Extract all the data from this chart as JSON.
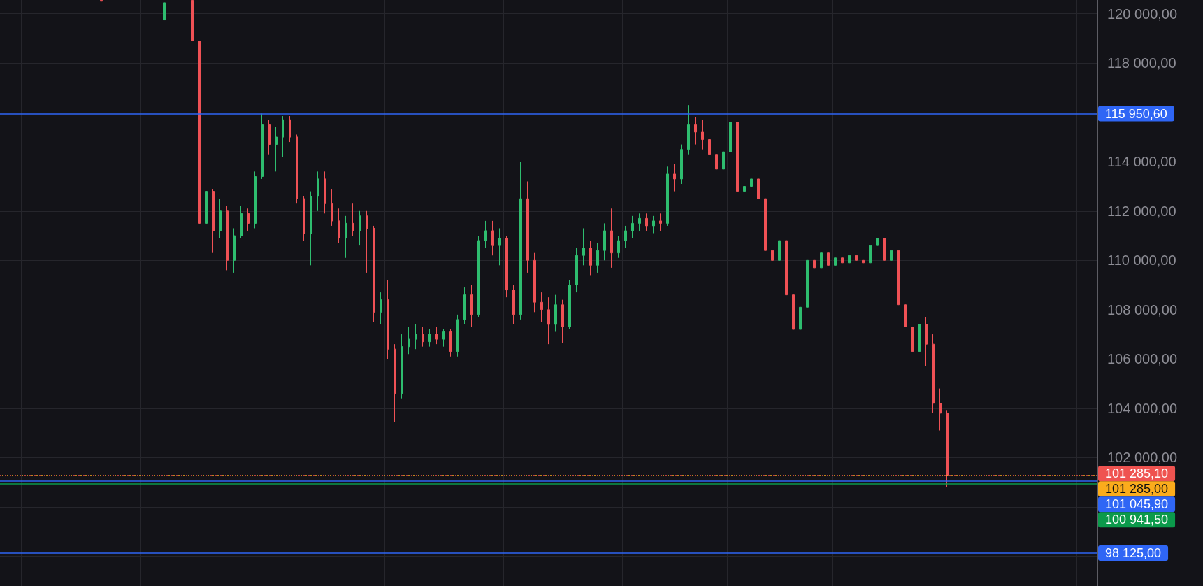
{
  "chart_data": {
    "type": "candlestick",
    "categories": [
      null,
      null,
      null,
      null,
      null,
      null,
      null,
      null,
      null,
      null,
      null,
      null,
      null,
      null,
      null,
      null,
      null,
      null,
      null,
      null,
      null,
      null,
      null,
      null,
      null,
      null,
      null,
      null,
      null,
      null,
      null,
      null,
      null,
      null,
      null,
      null,
      null,
      null,
      null,
      null,
      null,
      null,
      null,
      null,
      null,
      null,
      null,
      null,
      null,
      null,
      null,
      null,
      null,
      null,
      null,
      null,
      null,
      null,
      null,
      null,
      null,
      null,
      null,
      null,
      null,
      null,
      null,
      null,
      null,
      null,
      null,
      null,
      null,
      null,
      null,
      null,
      null,
      null,
      null,
      null,
      null,
      null,
      null,
      null,
      null,
      null,
      null,
      null,
      null,
      null,
      null,
      null,
      null,
      null,
      null,
      null,
      null,
      null,
      null,
      null,
      null,
      null,
      null,
      null,
      null,
      null,
      null,
      null,
      null,
      null,
      null,
      null,
      null,
      null,
      null,
      null,
      null,
      null,
      null,
      null,
      null,
      null,
      null,
      null,
      null,
      null,
      null,
      null,
      null,
      null,
      null,
      null,
      null,
      null,
      null,
      null,
      null,
      null,
      null,
      null,
      null,
      null,
      null,
      null,
      null,
      null,
      null,
      null,
      null,
      null,
      null,
      null,
      null,
      null,
      null,
      null,
      null
    ],
    "ohlc": [
      null,
      null,
      null,
      null,
      null,
      null,
      null,
      null,
      null,
      null,
      null,
      null,
      null,
      null,
      [
        120550,
        120550,
        120490,
        120510
      ],
      null,
      null,
      null,
      null,
      null,
      null,
      null,
      null,
      [
        119750,
        120550,
        119570,
        120450
      ],
      null,
      null,
      null,
      [
        120550,
        120550,
        118850,
        118900
      ],
      [
        118900,
        119000,
        101100,
        111500
      ],
      [
        111500,
        113300,
        110400,
        112800
      ],
      [
        112800,
        112900,
        110300,
        111200
      ],
      [
        111200,
        112500,
        110900,
        112000
      ],
      [
        112000,
        112200,
        109600,
        110000
      ],
      [
        110000,
        111300,
        109500,
        111000
      ],
      [
        111000,
        112200,
        110900,
        111900
      ],
      [
        111900,
        112100,
        111200,
        111500
      ],
      [
        111500,
        113600,
        111300,
        113400
      ],
      [
        113400,
        115950,
        113300,
        115500
      ],
      [
        115500,
        115700,
        114300,
        114700
      ],
      [
        114700,
        115400,
        113600,
        115000
      ],
      [
        115000,
        115850,
        114200,
        115700
      ],
      [
        115700,
        115850,
        114800,
        115000
      ],
      [
        115000,
        115100,
        112300,
        112500
      ],
      [
        112500,
        112600,
        110800,
        111100
      ],
      [
        111100,
        112800,
        109800,
        112600
      ],
      [
        112600,
        113600,
        112000,
        113300
      ],
      [
        113300,
        113600,
        111900,
        112300
      ],
      [
        112300,
        112900,
        111400,
        111600
      ],
      [
        111600,
        112100,
        110700,
        110900
      ],
      [
        110900,
        111800,
        110100,
        111500
      ],
      [
        111500,
        112300,
        111000,
        111200
      ],
      [
        111200,
        112000,
        110600,
        111800
      ],
      [
        111800,
        112000,
        109500,
        111300
      ],
      [
        111300,
        111400,
        107500,
        107900
      ],
      [
        107900,
        108700,
        107400,
        108400
      ],
      [
        108400,
        109200,
        106000,
        106400
      ],
      [
        106400,
        106600,
        103450,
        104600
      ],
      [
        104600,
        107000,
        104400,
        106500
      ],
      [
        106500,
        107300,
        106200,
        106800
      ],
      [
        106800,
        107400,
        106400,
        107000
      ],
      [
        107000,
        107300,
        106500,
        106700
      ],
      [
        106700,
        107200,
        106500,
        107000
      ],
      [
        107000,
        107300,
        106600,
        106800
      ],
      [
        106800,
        107200,
        106500,
        107100
      ],
      [
        107100,
        107200,
        106100,
        106300
      ],
      [
        106300,
        107800,
        106100,
        107600
      ],
      [
        107600,
        108900,
        107400,
        108600
      ],
      [
        108600,
        109000,
        107300,
        107800
      ],
      [
        107800,
        111000,
        107700,
        110800
      ],
      [
        110800,
        111600,
        110500,
        111200
      ],
      [
        111200,
        111600,
        110200,
        110600
      ],
      [
        110600,
        111300,
        109800,
        110900
      ],
      [
        110900,
        111000,
        108500,
        108800
      ],
      [
        108800,
        109000,
        107400,
        107800
      ],
      [
        107800,
        114000,
        107600,
        112500
      ],
      [
        112500,
        113200,
        109500,
        110000
      ],
      [
        110000,
        110300,
        107900,
        108300
      ],
      [
        108300,
        108700,
        107500,
        108000
      ],
      [
        108000,
        108500,
        106600,
        107400
      ],
      [
        107400,
        108600,
        107100,
        108200
      ],
      [
        108200,
        108400,
        106650,
        107300
      ],
      [
        107300,
        109200,
        107200,
        109000
      ],
      [
        109000,
        110500,
        108700,
        110200
      ],
      [
        110200,
        111300,
        109800,
        110500
      ],
      [
        110500,
        110800,
        109400,
        109800
      ],
      [
        109800,
        110700,
        109500,
        110400
      ],
      [
        110400,
        111500,
        110000,
        111200
      ],
      [
        111200,
        112100,
        109700,
        110300
      ],
      [
        110300,
        111000,
        110100,
        110800
      ],
      [
        110800,
        111400,
        110500,
        111200
      ],
      [
        111200,
        111800,
        110900,
        111500
      ],
      [
        111500,
        111900,
        111200,
        111700
      ],
      [
        111700,
        111900,
        111200,
        111400
      ],
      [
        111400,
        111800,
        111100,
        111600
      ],
      [
        111600,
        111900,
        111200,
        111500
      ],
      [
        111500,
        113800,
        111400,
        113500
      ],
      [
        113500,
        113900,
        112800,
        113300
      ],
      [
        113300,
        114700,
        113100,
        114500
      ],
      [
        114500,
        116300,
        114300,
        115500
      ],
      [
        115500,
        115800,
        114700,
        115200
      ],
      [
        115200,
        115700,
        114500,
        114900
      ],
      [
        114900,
        115000,
        114000,
        114300
      ],
      [
        114300,
        114500,
        113400,
        113700
      ],
      [
        113700,
        114600,
        113500,
        114400
      ],
      [
        114400,
        116050,
        114100,
        115600
      ],
      [
        115600,
        115700,
        112500,
        112800
      ],
      [
        112800,
        113400,
        112100,
        113000
      ],
      [
        113000,
        113600,
        112400,
        113300
      ],
      [
        113300,
        113500,
        112100,
        112500
      ],
      [
        112500,
        112700,
        109000,
        110400
      ],
      [
        110400,
        111700,
        109600,
        110000
      ],
      [
        110000,
        111300,
        107800,
        110800
      ],
      [
        110800,
        111000,
        108300,
        108600
      ],
      [
        108600,
        108900,
        106800,
        107200
      ],
      [
        107200,
        108400,
        106250,
        108100
      ],
      [
        108100,
        110300,
        107900,
        110000
      ],
      [
        110000,
        110700,
        109200,
        109700
      ],
      [
        109700,
        111150,
        108900,
        110300
      ],
      [
        110300,
        110600,
        108550,
        109800
      ],
      [
        109800,
        110300,
        109400,
        110100
      ],
      [
        110100,
        110500,
        109600,
        109900
      ],
      [
        109900,
        110400,
        109700,
        110200
      ],
      [
        110200,
        110400,
        109800,
        110000
      ],
      [
        110000,
        110300,
        109700,
        109900
      ],
      [
        109900,
        110800,
        109800,
        110600
      ],
      [
        110600,
        111200,
        110300,
        110900
      ],
      [
        110900,
        111000,
        109700,
        110000
      ],
      [
        110000,
        110700,
        109700,
        110400
      ],
      [
        110400,
        110500,
        107900,
        108200
      ],
      [
        108200,
        108300,
        107000,
        107300
      ],
      [
        107300,
        108300,
        105250,
        106300
      ],
      [
        106300,
        107800,
        106000,
        107400
      ],
      [
        107400,
        107700,
        105700,
        106600
      ],
      [
        106600,
        107000,
        103800,
        104200
      ],
      [
        104200,
        104800,
        103100,
        103800
      ],
      [
        103800,
        103900,
        100800,
        101285
      ],
      null,
      null,
      null,
      null,
      null,
      null,
      null,
      null,
      null,
      null,
      null,
      null,
      null,
      null,
      null,
      null,
      null,
      null,
      null,
      null,
      null
    ],
    "colors": [
      null,
      null,
      null,
      null,
      null,
      null,
      null,
      null,
      null,
      null,
      null,
      null,
      null,
      null,
      "#ef5155",
      null,
      null,
      null,
      null,
      null,
      null,
      null,
      null,
      "#2ebd6f",
      null,
      null,
      null,
      "#ef5155",
      "#ef5155",
      "#2ebd6f",
      "#ef5155",
      "#2ebd6f",
      "#ef5155",
      "#2ebd6f",
      "#2ebd6f",
      "#ef5155",
      "#2ebd6f",
      "#2ebd6f",
      "#ef5155",
      "#2ebd6f",
      "#2ebd6f",
      "#ef5155",
      "#ef5155",
      "#ef5155",
      "#2ebd6f",
      "#2ebd6f",
      "#ef5155",
      "#ef5155",
      "#ef5155",
      "#2ebd6f",
      "#ef5155",
      "#2ebd6f",
      "#ef5155",
      "#ef5155",
      "#2ebd6f",
      "#ef5155",
      "#ef5155",
      "#2ebd6f",
      "#2ebd6f",
      "#2ebd6f",
      "#ef5155",
      "#2ebd6f",
      "#ef5155",
      "#2ebd6f",
      "#ef5155",
      "#2ebd6f",
      "#2ebd6f",
      "#ef5155",
      "#2ebd6f",
      "#2ebd6f",
      "#ef5155",
      "#2ebd6f",
      "#ef5155",
      "#ef5155",
      "#2ebd6f",
      "#ef5155",
      "#ef5155",
      "#ef5155",
      "#ef5155",
      "#2ebd6f",
      "#ef5155",
      "#2ebd6f",
      "#2ebd6f",
      "#2ebd6f",
      "#ef5155",
      "#2ebd6f",
      "#2ebd6f",
      "#ef5155",
      "#2ebd6f",
      "#2ebd6f",
      "#2ebd6f",
      "#2ebd6f",
      "#ef5155",
      "#2ebd6f",
      "#ef5155",
      "#2ebd6f",
      "#ef5155",
      "#2ebd6f",
      "#2ebd6f",
      "#ef5155",
      "#ef5155",
      "#ef5155",
      "#ef5155",
      "#2ebd6f",
      "#2ebd6f",
      "#ef5155",
      "#2ebd6f",
      "#2ebd6f",
      "#ef5155",
      "#ef5155",
      "#ef5155",
      "#2ebd6f",
      "#ef5155",
      "#ef5155",
      "#2ebd6f",
      "#2ebd6f",
      "#ef5155",
      "#2ebd6f",
      "#ef5155",
      "#2ebd6f",
      "#ef5155",
      "#2ebd6f",
      "#ef5155",
      "#ef5155",
      "#2ebd6f",
      "#2ebd6f",
      "#ef5155",
      "#2ebd6f",
      "#ef5155",
      "#ef5155",
      "#ef5155",
      "#2ebd6f",
      "#ef5155",
      "#ef5155",
      "#ef5155",
      "#ef5155",
      null,
      null,
      null,
      null,
      null,
      null,
      null,
      null,
      null,
      null,
      null,
      null,
      null,
      null,
      null,
      null,
      null,
      null,
      null,
      null,
      null
    ],
    "ylim": [
      96790,
      120560
    ],
    "yticks": [
      {
        "value": 98000,
        "label": null
      },
      {
        "value": 100000,
        "label": null
      },
      {
        "value": 102000,
        "label": "102 000,00"
      },
      {
        "value": 104000,
        "label": "104 000,00"
      },
      {
        "value": 106000,
        "label": "106 000,00"
      },
      {
        "value": 108000,
        "label": "108 000,00"
      },
      {
        "value": 110000,
        "label": "110 000,00"
      },
      {
        "value": 112000,
        "label": "112 000,00"
      },
      {
        "value": 114000,
        "label": "114 000,00"
      },
      {
        "value": 116000,
        "label": null
      },
      {
        "value": 118000,
        "label": "118 000,00"
      },
      {
        "value": 120000,
        "label": "120 000,00"
      }
    ],
    "ref_lines": [
      {
        "axis": "y",
        "value": 115950.6,
        "label": "115 950,60",
        "color": "#2f66f5",
        "line_style": "solid"
      },
      {
        "axis": "y",
        "value": 101285.1,
        "label": "101 285,10",
        "color": "#ef5350",
        "line_style": "dotted"
      },
      {
        "axis": "y",
        "value": 101285,
        "label": "101 285,00",
        "color": "#fbac1c",
        "line_style": "dotted"
      },
      {
        "axis": "y",
        "value": 101045.9,
        "label": "101 045,90",
        "color": "#2f66f5",
        "line_style": "solid"
      },
      {
        "axis": "y",
        "value": 100941.5,
        "label": "100 941,50",
        "color": "#0b9a4b",
        "line_style": "solid"
      },
      {
        "axis": "y",
        "value": 98125,
        "label": "98 125,00",
        "color": "#2f66f5",
        "line_style": "solid"
      }
    ],
    "grid": true,
    "tick_labels": "y"
  }
}
